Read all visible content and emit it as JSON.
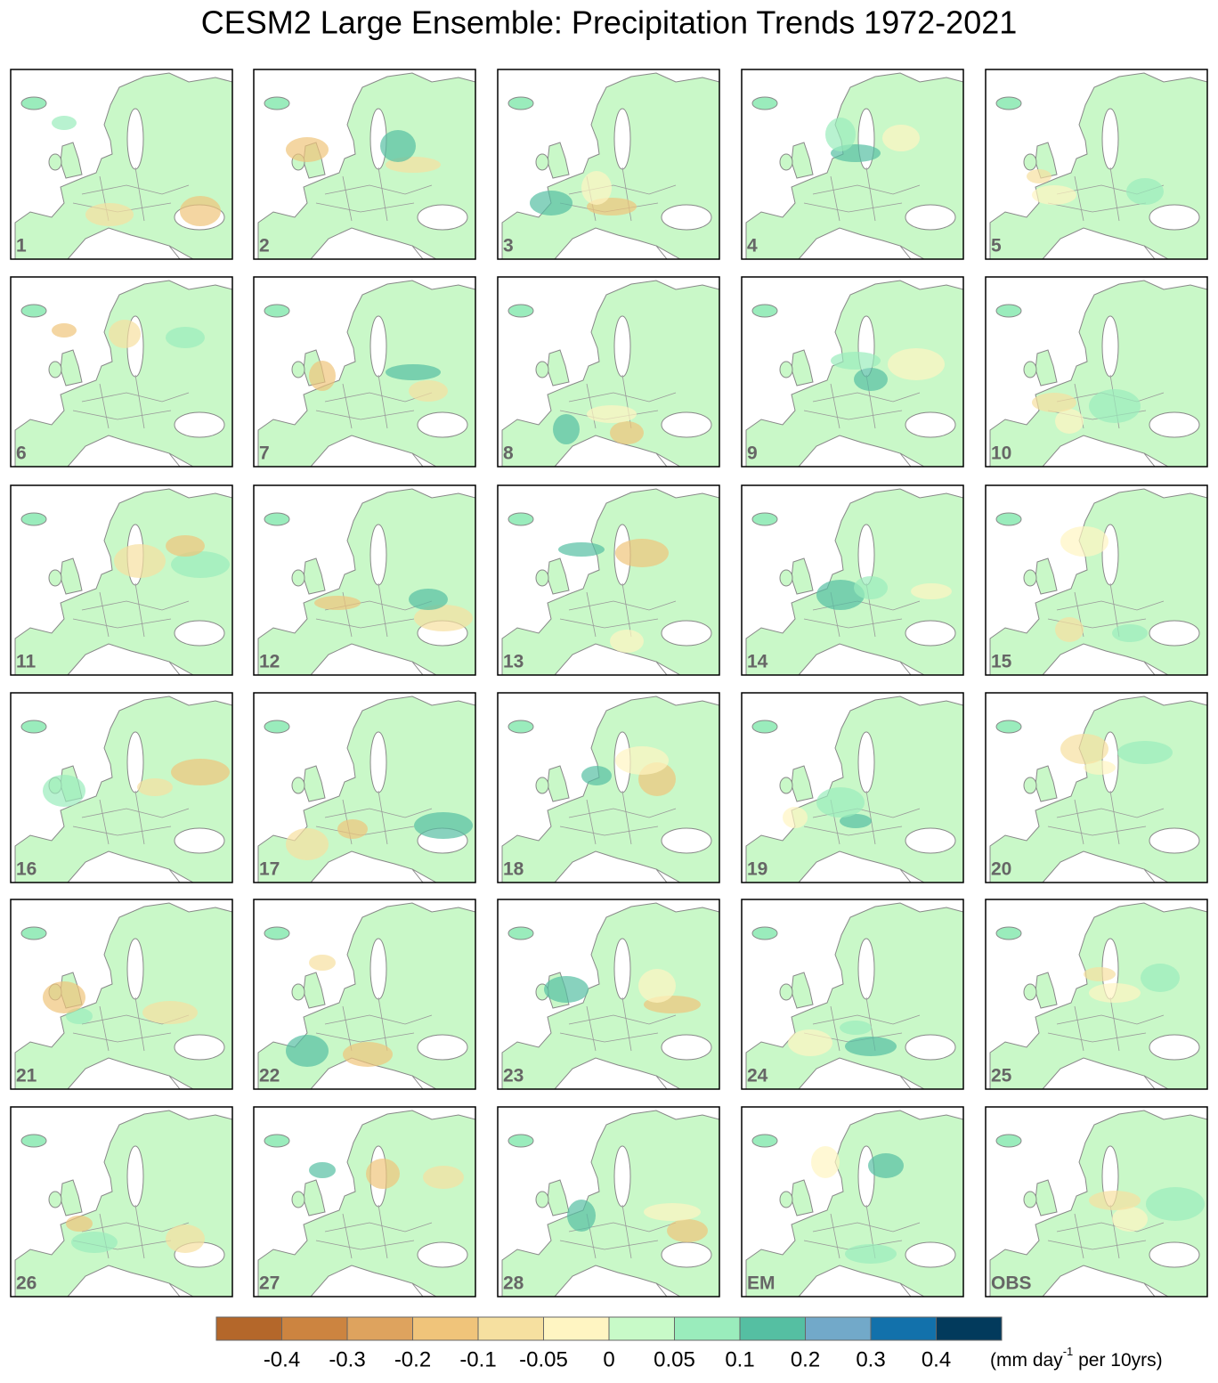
{
  "title": "CESM2 Large Ensemble: Precipitation Trends 1972-2021",
  "panels": [
    "1",
    "2",
    "3",
    "4",
    "5",
    "6",
    "7",
    "8",
    "9",
    "10",
    "11",
    "12",
    "13",
    "14",
    "15",
    "16",
    "17",
    "18",
    "19",
    "20",
    "21",
    "22",
    "23",
    "24",
    "25",
    "26",
    "27",
    "28",
    "EM",
    "OBS"
  ],
  "colorbar": {
    "colors": [
      "#b4672a",
      "#cc8440",
      "#dea35e",
      "#f0c47a",
      "#f6e0a0",
      "#fff5c2",
      "#c8fac8",
      "#9aecbc",
      "#55bfa2",
      "#72a9c9",
      "#1271ab",
      "#023a5c"
    ],
    "levels": [
      -0.4,
      -0.3,
      -0.2,
      -0.1,
      -0.05,
      0,
      0.05,
      0.1,
      0.2,
      0.3,
      0.4
    ],
    "unit_label": [
      "(mm day",
      "-1",
      " per 10yrs)"
    ]
  }
}
